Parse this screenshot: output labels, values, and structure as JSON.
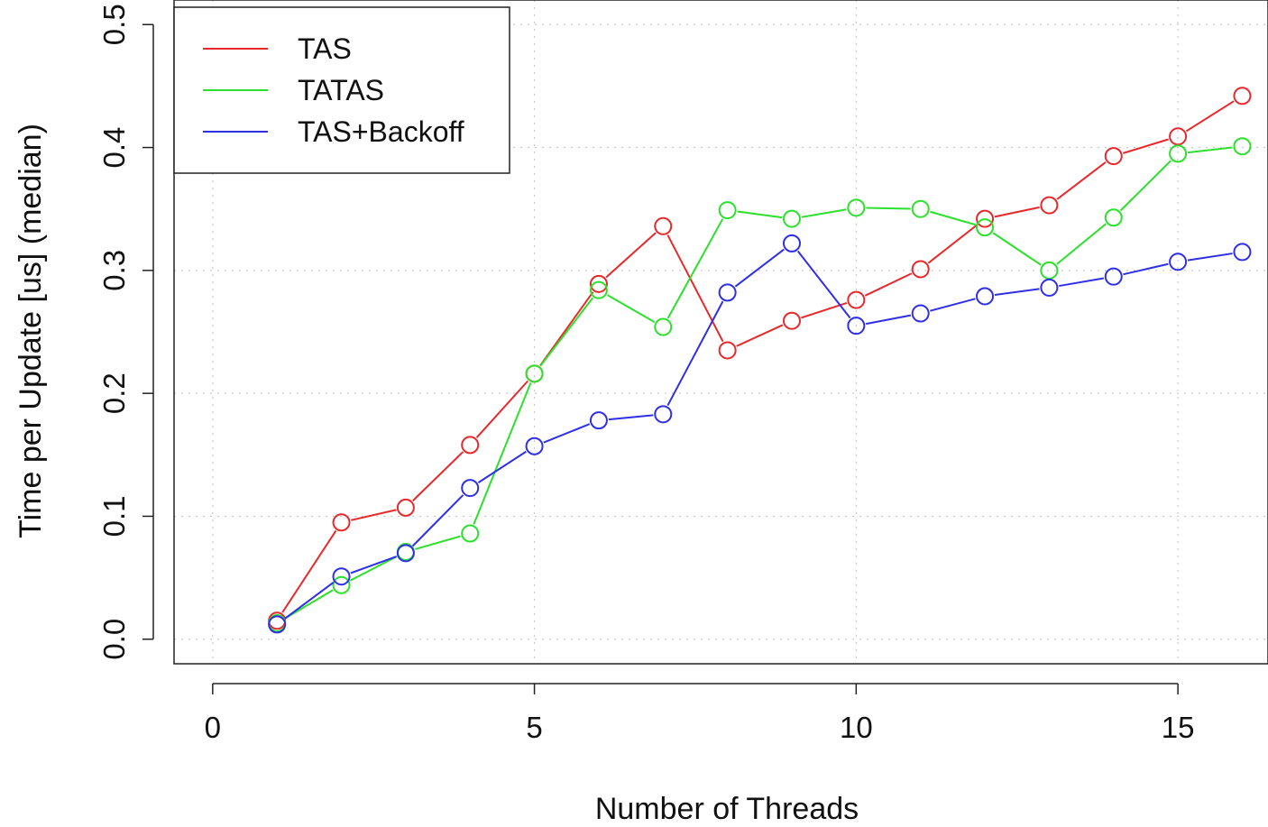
{
  "chart_data": {
    "type": "line",
    "title": "",
    "xlabel": "Number of Threads",
    "ylabel": "Time per Update [us] (median)",
    "xlim": [
      -0.6,
      16.4
    ],
    "ylim": [
      -0.02,
      0.52
    ],
    "x_ticks": [
      0,
      5,
      10,
      15
    ],
    "y_ticks": [
      0.0,
      0.1,
      0.2,
      0.3,
      0.4,
      0.5
    ],
    "x_tick_labels": [
      "0",
      "5",
      "10",
      "15"
    ],
    "y_tick_labels": [
      "0.0",
      "0.1",
      "0.2",
      "0.3",
      "0.4",
      "0.5"
    ],
    "grid": true,
    "legend_position": "top-left",
    "x": [
      1,
      2,
      3,
      4,
      5,
      6,
      7,
      8,
      9,
      10,
      11,
      12,
      13,
      14,
      15,
      16
    ],
    "series": [
      {
        "name": "TAS",
        "color": "#e8292b",
        "values": [
          0.015,
          0.095,
          0.107,
          0.158,
          0.216,
          0.289,
          0.336,
          0.235,
          0.259,
          0.276,
          0.301,
          0.342,
          0.353,
          0.393,
          0.409,
          0.442
        ]
      },
      {
        "name": "TATAS",
        "color": "#2ee02e",
        "values": [
          0.013,
          0.044,
          0.071,
          0.086,
          0.216,
          0.284,
          0.254,
          0.349,
          0.342,
          0.351,
          0.35,
          0.335,
          0.3,
          0.343,
          0.395,
          0.401
        ]
      },
      {
        "name": "TAS+Backoff",
        "color": "#2f2fe6",
        "values": [
          0.012,
          0.051,
          0.07,
          0.123,
          0.157,
          0.178,
          0.183,
          0.282,
          0.322,
          0.255,
          0.265,
          0.279,
          0.286,
          0.295,
          0.307,
          0.315
        ]
      }
    ]
  }
}
